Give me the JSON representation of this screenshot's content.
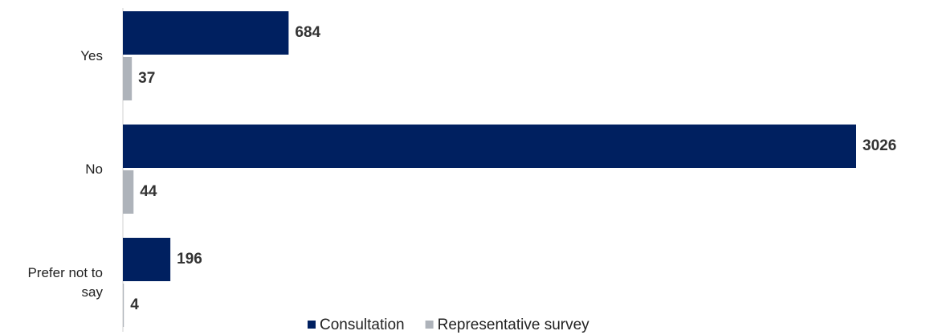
{
  "chart_data": {
    "type": "bar",
    "orientation": "horizontal",
    "categories": [
      "Yes",
      "No",
      "Prefer not to say"
    ],
    "series": [
      {
        "name": "Consultation",
        "color": "#002060",
        "values": [
          684,
          3026,
          196
        ]
      },
      {
        "name": "Representative survey",
        "color": "#aeb3ba",
        "values": [
          37,
          44,
          4
        ]
      }
    ],
    "xlim": [
      0,
      3026
    ],
    "legend": "bottom"
  }
}
